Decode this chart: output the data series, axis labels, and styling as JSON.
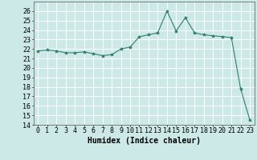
{
  "x": [
    0,
    1,
    2,
    3,
    4,
    5,
    6,
    7,
    8,
    9,
    10,
    11,
    12,
    13,
    14,
    15,
    16,
    17,
    18,
    19,
    20,
    21,
    22,
    23
  ],
  "y": [
    21.8,
    21.9,
    21.8,
    21.6,
    21.6,
    21.7,
    21.5,
    21.3,
    21.4,
    22.0,
    22.2,
    23.3,
    23.5,
    23.7,
    26.0,
    23.9,
    25.3,
    23.7,
    23.5,
    23.4,
    23.3,
    23.2,
    17.8,
    14.5
  ],
  "line_color": "#2e7d6e",
  "marker": "*",
  "marker_size": 3,
  "bg_color": "#cce9e7",
  "grid_color": "#ffffff",
  "xlabel": "Humidex (Indice chaleur)",
  "xlim": [
    -0.5,
    23.5
  ],
  "ylim": [
    14,
    27
  ],
  "yticks": [
    14,
    15,
    16,
    17,
    18,
    19,
    20,
    21,
    22,
    23,
    24,
    25,
    26
  ],
  "xtick_labels": [
    "0",
    "1",
    "2",
    "3",
    "4",
    "5",
    "6",
    "7",
    "8",
    "9",
    "10",
    "11",
    "12",
    "13",
    "14",
    "15",
    "16",
    "17",
    "18",
    "19",
    "20",
    "21",
    "22",
    "23"
  ],
  "tick_fontsize": 6,
  "label_fontsize": 7
}
